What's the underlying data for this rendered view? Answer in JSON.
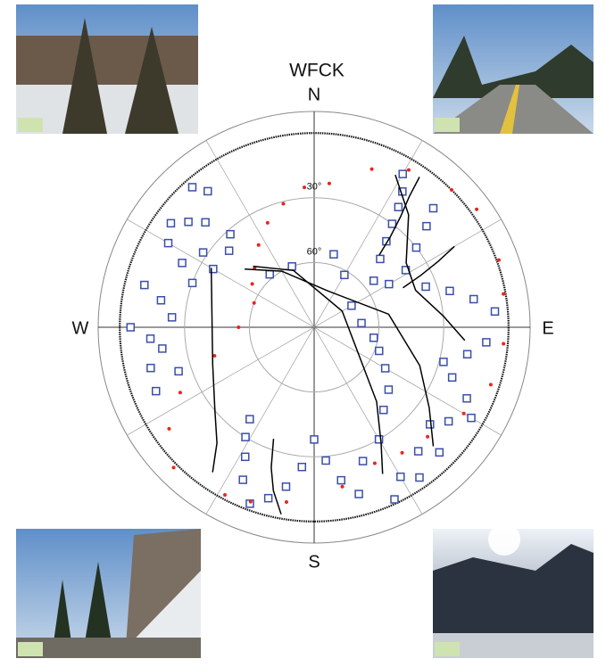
{
  "chart_data": {
    "type": "polar",
    "title": "WFCK",
    "direction_labels": [
      "N",
      "E",
      "S",
      "W"
    ],
    "rlim": [
      90,
      -10
    ],
    "rticks": [
      {
        "value": 30,
        "label": "30°"
      },
      {
        "value": 60,
        "label": "60°"
      }
    ],
    "series": [
      {
        "type": "scatter",
        "marker": "square",
        "color": "#3a4fa8",
        "x": [
          319,
          322,
          314,
          310,
          306,
          300,
          296,
          304,
          312,
          318,
          300,
          290,
          284,
          280,
          274,
          270,
          266,
          262,
          256,
          248,
          252,
          30,
          33,
          35,
          37,
          40,
          44,
          52,
          60,
          58,
          52,
          48,
          45,
          70,
          75,
          80,
          85,
          95,
          100,
          105,
          110,
          115,
          120,
          125,
          130,
          135,
          140,
          145,
          165,
          170,
          175,
          180,
          185,
          190,
          195,
          200,
          205,
          208,
          212,
          215,
          155,
          150,
          160,
          150,
          140,
          130,
          120,
          110,
          100,
          85,
          60,
          30,
          15,
          340,
          320
        ],
        "values": [
          4,
          10,
          20,
          14,
          8,
          12,
          22,
          28,
          37,
          32,
          36,
          30,
          9,
          18,
          24,
          5,
          14,
          19,
          12,
          11,
          24,
          8,
          15,
          22,
          30,
          38,
          46,
          55,
          50,
          40,
          30,
          20,
          12,
          35,
          25,
          15,
          6,
          10,
          18,
          28,
          22,
          12,
          6,
          14,
          20,
          8,
          15,
          5,
          10,
          18,
          28,
          38,
          25,
          15,
          8,
          3,
          12,
          22,
          30,
          38,
          2,
          10,
          24,
          30,
          40,
          45,
          52,
          58,
          62,
          68,
          70,
          62,
          55,
          60,
          58
        ]
      },
      {
        "type": "scatter",
        "marker": "dot",
        "color": "#e8261c",
        "x": [
          356,
          6,
          20,
          31,
          45,
          54,
          70,
          80,
          95,
          108,
          120,
          134,
          145,
          156,
          170,
          189,
          200,
          208,
          225,
          235,
          244,
          254,
          270,
          292,
          305,
          315,
          326,
          336,
          346
        ],
        "values": [
          25,
          23,
          12,
          5,
          0,
          -3,
          -1,
          1,
          2,
          4,
          10,
          17,
          19,
          21,
          15,
          8,
          4,
          2,
          -2,
          8,
          21,
          42,
          55,
          60,
          55,
          51,
          44,
          37,
          31
        ]
      },
      {
        "type": "line",
        "color": "#000000",
        "x": [
          310,
          330,
          20,
          80,
          110,
          125,
          135
        ],
        "values": [
          48,
          60,
          72,
          55,
          38,
          25,
          12
        ]
      },
      {
        "type": "line",
        "color": "#000000",
        "x": [
          315,
          340,
          60,
          140,
          150,
          155
        ],
        "values": [
          50,
          62,
          75,
          45,
          28,
          15
        ]
      },
      {
        "type": "line",
        "color": "#000000",
        "x": [
          300,
          250,
          230,
          220,
          215
        ],
        "values": [
          35,
          40,
          30,
          20,
          8
        ]
      },
      {
        "type": "line",
        "color": "#000000",
        "x": [
          200,
          197,
          194,
          190
        ],
        "values": [
          35,
          22,
          12,
          2
        ]
      },
      {
        "type": "line",
        "color": "#000000",
        "x": [
          28,
          40,
          55,
          70,
          85,
          95
        ],
        "values": [
          10,
          22,
          38,
          40,
          30,
          20
        ]
      },
      {
        "type": "line",
        "color": "#000000",
        "x": [
          60,
          62,
          64,
          66
        ],
        "values": [
          15,
          25,
          35,
          45
        ]
      },
      {
        "type": "line",
        "color": "#000000",
        "x": [
          35,
          36,
          38,
          40,
          42
        ],
        "values": [
          5,
          15,
          25,
          35,
          45
        ]
      }
    ]
  }
}
